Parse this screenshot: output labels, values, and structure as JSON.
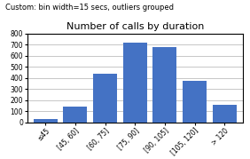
{
  "chart_data": {
    "type": "bar",
    "title": "Number of calls by duration",
    "subtitle": "Custom: bin width=15 secs, outliers grouped",
    "categories": [
      "≤45",
      "[45, 60]",
      "[60, 75]",
      "[75, 90]",
      "[90, 105]",
      "[105, 120]",
      "> 120"
    ],
    "values": [
      30,
      140,
      440,
      720,
      675,
      375,
      160
    ],
    "color": "#4472C4",
    "ylim": [
      0,
      800
    ],
    "yticks": [
      0,
      100,
      200,
      300,
      400,
      500,
      600,
      700,
      800
    ],
    "grid": true
  }
}
